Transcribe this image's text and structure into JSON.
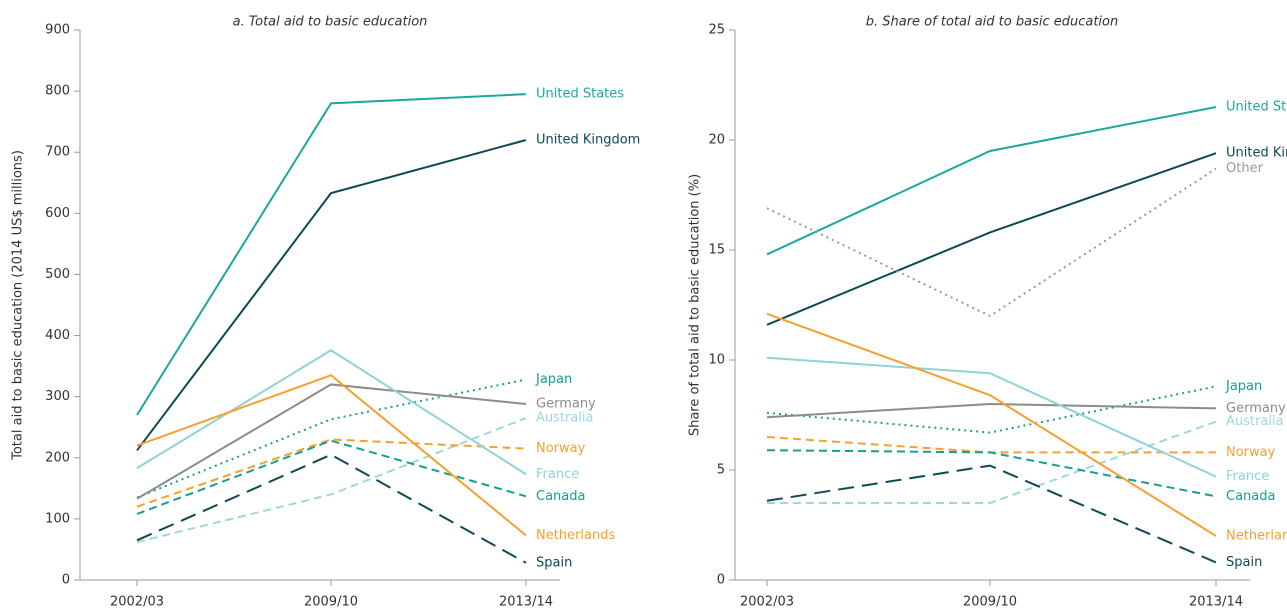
{
  "chart_data": [
    {
      "type": "line",
      "title": "a. Total aid to basic education",
      "y_label": "Total aid to basic education (2014 US$ millions)",
      "categories": [
        "2002/03",
        "2009/10",
        "2013/14"
      ],
      "ylim": [
        0,
        900
      ],
      "yticks": [
        0,
        100,
        200,
        300,
        400,
        500,
        600,
        700,
        800,
        900
      ],
      "series": [
        {
          "name": "United States",
          "color": "#1aa89e",
          "style": "solid",
          "values": [
            270,
            780,
            795
          ]
        },
        {
          "name": "United Kingdom",
          "color": "#0d4a52",
          "style": "solid",
          "values": [
            212,
            633,
            720
          ]
        },
        {
          "name": "Japan",
          "color": "#14a090",
          "style": "dotted",
          "values": [
            135,
            263,
            328
          ]
        },
        {
          "name": "Germany",
          "color": "#8c8c8c",
          "style": "solid",
          "values": [
            133,
            320,
            288
          ]
        },
        {
          "name": "Australia",
          "color": "#9dd8dc",
          "style": "dashed",
          "values": [
            62,
            140,
            265
          ]
        },
        {
          "name": "Norway",
          "color": "#f5a030",
          "style": "dashed",
          "values": [
            120,
            230,
            215
          ]
        },
        {
          "name": "France",
          "color": "#8fd3d7",
          "style": "solid",
          "values": [
            183,
            376,
            173
          ]
        },
        {
          "name": "Canada",
          "color": "#14a090",
          "style": "dashed",
          "values": [
            108,
            228,
            137
          ]
        },
        {
          "name": "Netherlands",
          "color": "#f5a030",
          "style": "solid",
          "values": [
            220,
            335,
            73
          ]
        },
        {
          "name": "Spain",
          "color": "#0d4a52",
          "style": "longdash",
          "values": [
            65,
            205,
            28
          ]
        }
      ]
    },
    {
      "type": "line",
      "title": "b. Share of total aid to basic education",
      "y_label": "Share of total aid to basic education (%)",
      "categories": [
        "2002/03",
        "2009/10",
        "2013/14"
      ],
      "ylim": [
        0,
        25
      ],
      "yticks": [
        0,
        5,
        10,
        15,
        20,
        25
      ],
      "series": [
        {
          "name": "United States",
          "color": "#1aa89e",
          "style": "solid",
          "values": [
            14.8,
            19.5,
            21.5
          ]
        },
        {
          "name": "United Kingdom",
          "color": "#0d4a52",
          "style": "solid",
          "values": [
            11.6,
            15.8,
            19.4
          ]
        },
        {
          "name": "Other",
          "color": "#999999",
          "style": "dotted",
          "values": [
            16.9,
            12.0,
            18.7
          ]
        },
        {
          "name": "Japan",
          "color": "#14a090",
          "style": "dotted",
          "values": [
            7.6,
            6.7,
            8.8
          ]
        },
        {
          "name": "Germany",
          "color": "#8c8c8c",
          "style": "solid",
          "values": [
            7.4,
            8.0,
            7.8
          ]
        },
        {
          "name": "Australia",
          "color": "#9dd8dc",
          "style": "dashed",
          "values": [
            3.5,
            3.5,
            7.2
          ]
        },
        {
          "name": "Norway",
          "color": "#f5a030",
          "style": "dashed",
          "values": [
            6.5,
            5.8,
            5.8
          ]
        },
        {
          "name": "France",
          "color": "#8fd3d7",
          "style": "solid",
          "values": [
            10.1,
            9.4,
            4.7
          ]
        },
        {
          "name": "Canada",
          "color": "#14a090",
          "style": "dashed",
          "values": [
            5.9,
            5.8,
            3.8
          ]
        },
        {
          "name": "Netherlands",
          "color": "#f5a030",
          "style": "solid",
          "values": [
            12.1,
            8.4,
            2.0
          ]
        },
        {
          "name": "Spain",
          "color": "#0d4a52",
          "style": "longdash",
          "values": [
            3.6,
            5.2,
            0.8
          ]
        }
      ]
    }
  ]
}
